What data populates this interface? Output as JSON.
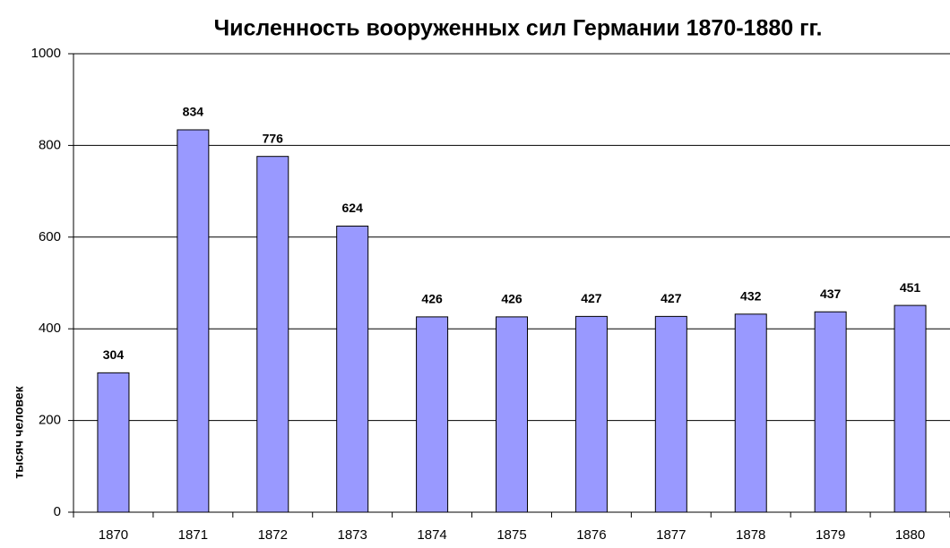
{
  "chart_data": {
    "type": "bar",
    "title": "Численность вооруженных сил Германии 1870-1880 гг.",
    "y_label": "тысяч человек",
    "categories": [
      "1870",
      "1871",
      "1872",
      "1873",
      "1874",
      "1875",
      "1876",
      "1877",
      "1878",
      "1879",
      "1880"
    ],
    "values": [
      304,
      834,
      776,
      624,
      426,
      426,
      427,
      427,
      432,
      437,
      451
    ],
    "color": "#9999ff",
    "ylim": [
      0,
      1000
    ],
    "yticks": [
      0,
      200,
      400,
      600,
      800,
      1000
    ],
    "grid": true
  }
}
